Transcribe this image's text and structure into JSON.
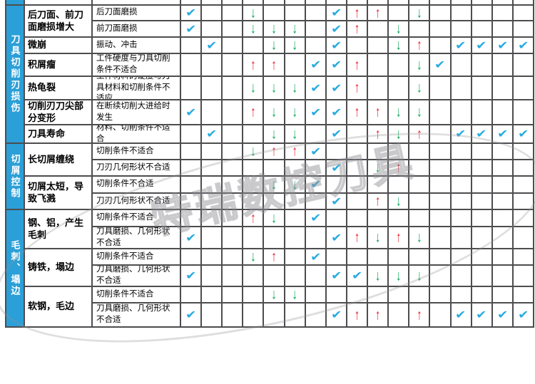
{
  "watermark": {
    "text": "特瑞数控刀具"
  },
  "top_partial_fragment": "理",
  "colors": {
    "header_blue": "#2b9fd8",
    "check": "#29abe2",
    "up": "#e81c2a",
    "down": "#00a551",
    "grid": "#4d4d4f"
  },
  "symbols": {
    "check": "✔",
    "up": "↑",
    "down": "↓"
  },
  "column_count": 17,
  "groups": [
    {
      "label": "刀具切削刃损伤",
      "row_start": 1,
      "row_span": 7
    },
    {
      "label": "切屑控制",
      "row_start": 8,
      "row_span": 4
    },
    {
      "label": "毛刺、塌边",
      "row_start": 12,
      "row_span": 6
    }
  ],
  "categories": [
    {
      "label": "后刀面、前刀面磨损增大",
      "row_start": 1,
      "row_span": 2
    },
    {
      "label": "微崩",
      "row_start": 3,
      "row_span": 1
    },
    {
      "label": "积屑瘤",
      "row_start": 4,
      "row_span": 1
    },
    {
      "label": "热龟裂",
      "row_start": 5,
      "row_span": 1
    },
    {
      "label": "切削刃刀尖部分变形",
      "row_start": 6,
      "row_span": 1
    },
    {
      "label": "刀具寿命",
      "row_start": 7,
      "row_span": 1
    },
    {
      "label": "长切屑缠绕",
      "row_start": 8,
      "row_span": 2
    },
    {
      "label": "切屑太短，导致飞溅",
      "row_start": 10,
      "row_span": 2
    },
    {
      "label": "钢、铝，产生毛刺",
      "row_start": 12,
      "row_span": 2
    },
    {
      "label": "铸铁，塌边",
      "row_start": 14,
      "row_span": 2
    },
    {
      "label": "软钢，毛边",
      "row_start": 16,
      "row_span": 2
    }
  ],
  "rows": [
    {
      "cause": "后刀面磨损",
      "marks": {
        "1": "check",
        "4": "down",
        "8": "check",
        "9": "up",
        "10": "up",
        "12": "down"
      }
    },
    {
      "cause": "前刀面磨损",
      "marks": {
        "1": "check",
        "4": "down",
        "5": "down",
        "6": "down",
        "8": "check",
        "9": "up",
        "11": "down"
      }
    },
    {
      "cause": "振动、冲击",
      "marks": {
        "2": "check",
        "5": "down",
        "6": "down",
        "8": "check",
        "11": "down",
        "12": "up",
        "14": "check",
        "15": "check",
        "16": "check",
        "17": "check"
      }
    },
    {
      "cause": "工件硬度与刀具切削条件不适合",
      "marks": {
        "4": "up",
        "5": "up",
        "7": "check",
        "8": "check",
        "9": "up",
        "12": "down",
        "13": "check"
      }
    },
    {
      "cause": "工件材料的硬度与刀具材料和切削条件不适应",
      "marks": {
        "4": "down",
        "5": "down",
        "6": "down",
        "7": "check",
        "8": "check",
        "9": "up",
        "12": "down"
      }
    },
    {
      "cause": "在断续切削大进给时发生",
      "marks": {
        "1": "check",
        "4": "up",
        "5": "down",
        "6": "down",
        "7": "check",
        "8": "check",
        "9": "up",
        "10": "up",
        "11": "down",
        "12": "down"
      }
    },
    {
      "cause": "材料、切削条件不适合",
      "marks": {
        "2": "check",
        "5": "down",
        "6": "down",
        "8": "check",
        "10": "up",
        "11": "down",
        "12": "up",
        "14": "check",
        "15": "check",
        "16": "check",
        "17": "check"
      }
    },
    {
      "cause": "切削条件不适合",
      "marks": {
        "4": "down",
        "5": "up",
        "6": "up",
        "7": "check"
      }
    },
    {
      "cause": "刀刃几何形状不合适",
      "marks": {
        "8": "check",
        "10": "down",
        "11": "up"
      }
    },
    {
      "cause": "切削条件不合适",
      "marks": {
        "5": "down",
        "6": "down",
        "7": "check"
      }
    },
    {
      "cause": "刀刃几何形状不合适",
      "marks": {
        "8": "check",
        "10": "up",
        "11": "down"
      }
    },
    {
      "cause": "切削条件不适合",
      "marks": {
        "4": "up",
        "5": "down",
        "7": "check"
      }
    },
    {
      "cause": "刀具磨损、几何形状不合适",
      "marks": {
        "1": "check",
        "8": "check",
        "9": "up",
        "10": "down",
        "11": "up",
        "12": "down"
      }
    },
    {
      "cause": "切削条件不适合",
      "marks": {
        "4": "down",
        "5": "up",
        "7": "check"
      }
    },
    {
      "cause": "刀具磨损、几何形状不合适",
      "marks": {
        "1": "check",
        "8": "check",
        "9": "check",
        "10": "down",
        "11": "down",
        "12": "down"
      }
    },
    {
      "cause": "切削条件不适合",
      "marks": {
        "5": "down",
        "6": "down"
      }
    },
    {
      "cause": "刀具磨损、几何形状不合适",
      "marks": {
        "1": "check",
        "8": "check",
        "9": "up",
        "10": "up",
        "12": "up",
        "14": "check",
        "15": "check",
        "16": "check",
        "17": "check"
      }
    }
  ]
}
